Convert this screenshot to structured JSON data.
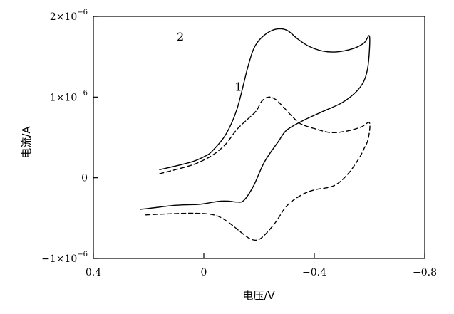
{
  "chart_data": {
    "type": "line",
    "xlabel": "电压/V",
    "ylabel": "电流/A",
    "xlim": [
      0.4,
      -0.8
    ],
    "ylim": [
      -1e-06,
      2e-06
    ],
    "x_ticks": [
      {
        "value": 0.4,
        "label": "0.4"
      },
      {
        "value": 0,
        "label": "0"
      },
      {
        "value": -0.4,
        "label": "−0.4"
      },
      {
        "value": -0.8,
        "label": "−0.8"
      }
    ],
    "y_ticks": [
      {
        "value": 2e-06,
        "base": "2×10",
        "exp": "−6"
      },
      {
        "value": 1e-06,
        "base": "1×10",
        "exp": "−6"
      },
      {
        "value": 0,
        "base": "0",
        "exp": ""
      },
      {
        "value": -1e-06,
        "base": "−1×10",
        "exp": "−6"
      }
    ],
    "series": [
      {
        "name": "2",
        "style": "solid",
        "label_at": [
          0.085,
          1.7e-06
        ],
        "points": [
          [
            0.16,
            1e-07
          ],
          [
            0.05,
            1.9e-07
          ],
          [
            0.0,
            2.6e-07
          ],
          [
            -0.03,
            3.3e-07
          ],
          [
            -0.08,
            5.4e-07
          ],
          [
            -0.12,
            8.5e-07
          ],
          [
            -0.16,
            1.38e-06
          ],
          [
            -0.185,
            1.63e-06
          ],
          [
            -0.22,
            1.77e-06
          ],
          [
            -0.26,
            1.84e-06
          ],
          [
            -0.3,
            1.83e-06
          ],
          [
            -0.34,
            1.72e-06
          ],
          [
            -0.38,
            1.63e-06
          ],
          [
            -0.43,
            1.57e-06
          ],
          [
            -0.48,
            1.56e-06
          ],
          [
            -0.54,
            1.6e-06
          ],
          [
            -0.58,
            1.67e-06
          ],
          [
            -0.6,
            1.75e-06
          ],
          [
            -0.595,
            1.4e-06
          ],
          [
            -0.58,
            1.2e-06
          ],
          [
            -0.55,
            1.06e-06
          ],
          [
            -0.5,
            9.3e-07
          ],
          [
            -0.43,
            8.2e-07
          ],
          [
            -0.36,
            7.1e-07
          ],
          [
            -0.3,
            5.9e-07
          ],
          [
            -0.27,
            4.5e-07
          ],
          [
            -0.22,
            2e-07
          ],
          [
            -0.18,
            -1e-07
          ],
          [
            -0.145,
            -2.8e-07
          ],
          [
            -0.12,
            -3e-07
          ],
          [
            -0.09,
            -2.9e-07
          ],
          [
            -0.06,
            -2.9e-07
          ],
          [
            -0.02,
            -3.1e-07
          ],
          [
            0.02,
            -3.3e-07
          ],
          [
            0.1,
            -3.4e-07
          ],
          [
            0.2,
            -3.8e-07
          ],
          [
            0.23,
            -3.9e-07
          ]
        ]
      },
      {
        "name": "1",
        "style": "dashed",
        "label_at": [
          -0.125,
          1.08e-06
        ],
        "points": [
          [
            0.16,
            5e-08
          ],
          [
            0.05,
            1.5e-07
          ],
          [
            0.0,
            2.2e-07
          ],
          [
            -0.04,
            3e-07
          ],
          [
            -0.08,
            4.2e-07
          ],
          [
            -0.12,
            6e-07
          ],
          [
            -0.16,
            7.3e-07
          ],
          [
            -0.19,
            8.3e-07
          ],
          [
            -0.21,
            9.5e-07
          ],
          [
            -0.235,
            1e-06
          ],
          [
            -0.26,
            9.7e-07
          ],
          [
            -0.29,
            8.7e-07
          ],
          [
            -0.32,
            7.6e-07
          ],
          [
            -0.35,
            6.7e-07
          ],
          [
            -0.4,
            6.1e-07
          ],
          [
            -0.46,
            5.6e-07
          ],
          [
            -0.52,
            5.8e-07
          ],
          [
            -0.57,
            6.3e-07
          ],
          [
            -0.6,
            6.8e-07
          ],
          [
            -0.595,
            4.8e-07
          ],
          [
            -0.58,
            3.6e-07
          ],
          [
            -0.56,
            2.3e-07
          ],
          [
            -0.52,
            4e-08
          ],
          [
            -0.47,
            -1e-07
          ],
          [
            -0.4,
            -1.5e-07
          ],
          [
            -0.35,
            -2.2e-07
          ],
          [
            -0.3,
            -3.5e-07
          ],
          [
            -0.26,
            -5.5e-07
          ],
          [
            -0.22,
            -7.1e-07
          ],
          [
            -0.195,
            -7.7e-07
          ],
          [
            -0.17,
            -7.6e-07
          ],
          [
            -0.14,
            -6.9e-07
          ],
          [
            -0.1,
            -5.8e-07
          ],
          [
            -0.06,
            -4.9e-07
          ],
          [
            -0.02,
            -4.5e-07
          ],
          [
            0.05,
            -4.4e-07
          ],
          [
            0.15,
            -4.5e-07
          ],
          [
            0.21,
            -4.6e-07
          ]
        ]
      }
    ]
  }
}
